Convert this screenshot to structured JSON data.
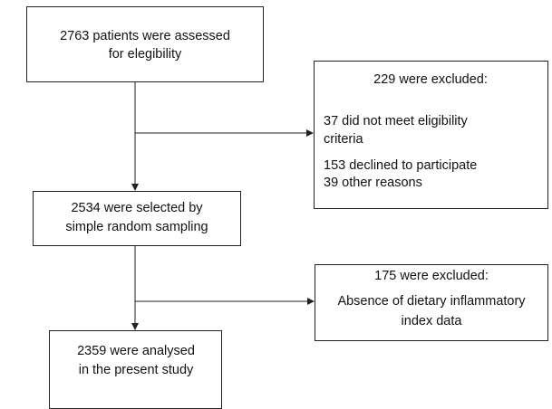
{
  "nodes": [
    {
      "lines": [
        "2763 patients were assessed",
        "for elegibility"
      ]
    },
    {
      "lines": [
        "229 were excluded:",
        "37 did not meet eligibility",
        "criteria",
        "153 declined to participate",
        "39 other reasons"
      ]
    },
    {
      "lines": [
        "2534 were selected by",
        "simple random sampling"
      ]
    },
    {
      "lines": [
        "175 were excluded:",
        "Absence of dietary inflammatory",
        "index data"
      ]
    },
    {
      "lines": [
        "2359 were analysed",
        "in the present study"
      ]
    }
  ]
}
